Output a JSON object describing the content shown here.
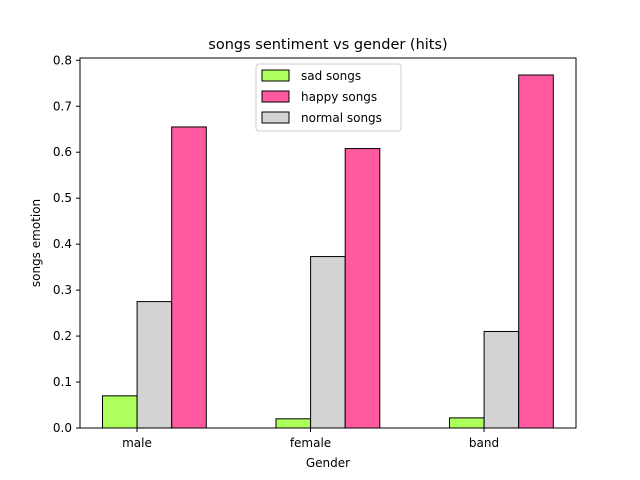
{
  "chart_data": {
    "type": "bar",
    "title": "songs sentiment vs gender (hits)",
    "xlabel": "Gender",
    "ylabel": "songs emotion",
    "categories": [
      "male",
      "female",
      "band"
    ],
    "series": [
      {
        "name": "sad songs",
        "color": "#adff5c",
        "values": [
          0.07,
          0.02,
          0.022
        ]
      },
      {
        "name": "normal songs",
        "color": "#d3d3d3",
        "values": [
          0.275,
          0.373,
          0.21
        ]
      },
      {
        "name": "happy songs",
        "color": "#ff5aa0",
        "values": [
          0.655,
          0.608,
          0.768
        ]
      }
    ],
    "legend_order": [
      "sad songs",
      "happy songs",
      "normal songs"
    ],
    "legend_position": "top-center",
    "ylim": [
      0,
      0.805
    ],
    "yticks": [
      0.0,
      0.1,
      0.2,
      0.3,
      0.4,
      0.5,
      0.6,
      0.7,
      0.8
    ],
    "ytick_labels": [
      "0.0",
      "0.1",
      "0.2",
      "0.3",
      "0.4",
      "0.5",
      "0.6",
      "0.7",
      "0.8"
    ],
    "grid": false
  }
}
